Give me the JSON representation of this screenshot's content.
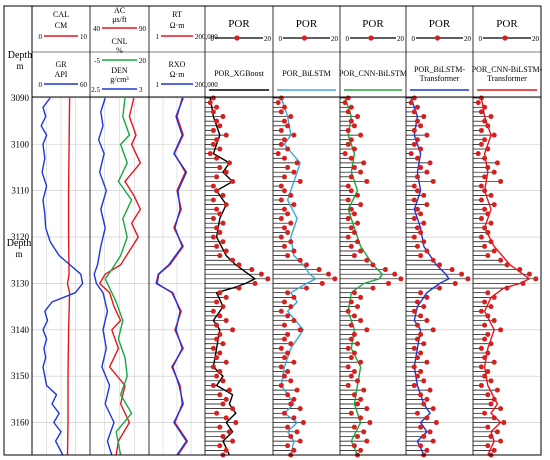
{
  "chart_data": {
    "type": "line",
    "title": "",
    "depth_axis": {
      "label": "Depth",
      "unit": "m",
      "range": [
        3090,
        3167
      ],
      "ticks": [
        3090,
        3100,
        3110,
        3120,
        3130,
        3140,
        3150,
        3160
      ]
    },
    "colors": {
      "red": "#e8141c",
      "blue": "#1f35d8",
      "green": "#16a83c",
      "cyan": "#3aa9d6",
      "black": "#000000",
      "grid": "#c8c8c8",
      "marker": "#d61f1f"
    },
    "tracks": [
      {
        "id": "t1",
        "headers": [
          {
            "name": "CAL",
            "unit": "CM",
            "min": "0",
            "max": "10",
            "color": "#e8141c"
          },
          {
            "name": "GR",
            "unit": "API",
            "min": "0",
            "max": "60",
            "color": "#1f35d8"
          }
        ],
        "series": [
          {
            "name": "CAL",
            "color": "#e8141c",
            "min": 0,
            "max": 10,
            "depth": [
              3090,
              3100,
              3110,
              3120,
              3128,
              3130,
              3132,
              3140,
              3150,
              3160,
              3167
            ],
            "values": [
              6.6,
              6.5,
              6.4,
              6.4,
              6.5,
              6.2,
              6.6,
              6.4,
              6.3,
              6.3,
              6.2
            ]
          },
          {
            "name": "GR",
            "color": "#1f35d8",
            "min": 0,
            "max": 60,
            "depth": [
              3090,
              3092,
              3094,
              3096,
              3098,
              3100,
              3103,
              3106,
              3109,
              3112,
              3115,
              3118,
              3121,
              3124,
              3126,
              3128,
              3130,
              3132,
              3134,
              3136,
              3138,
              3140,
              3142,
              3144,
              3146,
              3148,
              3150,
              3152,
              3154,
              3156,
              3158,
              3160,
              3162,
              3164,
              3167
            ],
            "values": [
              18,
              10,
              13,
              8,
              14,
              10,
              12,
              9,
              14,
              10,
              12,
              13,
              18,
              28,
              40,
              52,
              54,
              46,
              20,
              12,
              15,
              10,
              14,
              11,
              13,
              10,
              12,
              14,
              25,
              20,
              28,
              22,
              30,
              24,
              32
            ]
          }
        ]
      },
      {
        "id": "t2",
        "headers": [
          {
            "name": "AC",
            "unit": "μs/ft",
            "min": "40",
            "max": "90",
            "color": "#e8141c"
          },
          {
            "name": "CNL",
            "unit": "%",
            "min": "-5",
            "max": "20",
            "color": "#16a83c"
          },
          {
            "name": "DEN",
            "unit": "g/cm³",
            "min": "2.5",
            "max": "3",
            "color": "#1f35d8"
          }
        ],
        "series": [
          {
            "name": "AC",
            "color": "#e8141c",
            "min": 40,
            "max": 90,
            "depth": [
              3090,
              3094,
              3098,
              3100,
              3104,
              3108,
              3111,
              3114,
              3117,
              3120,
              3123,
              3126,
              3128,
              3130,
              3132,
              3135,
              3138,
              3140,
              3144,
              3148,
              3152,
              3156,
              3160,
              3164,
              3167
            ],
            "values": [
              78,
              74,
              80,
              76,
              84,
              70,
              78,
              84,
              76,
              82,
              74,
              66,
              52,
              47,
              56,
              60,
              66,
              58,
              64,
              56,
              70,
              66,
              74,
              64,
              62
            ]
          },
          {
            "name": "CNL",
            "color": "#16a83c",
            "min": -5,
            "max": 20,
            "depth": [
              3090,
              3094,
              3098,
              3100,
              3104,
              3108,
              3112,
              3116,
              3120,
              3124,
              3127,
              3129,
              3131,
              3134,
              3138,
              3142,
              3146,
              3150,
              3154,
              3158,
              3162,
              3167
            ],
            "values": [
              10,
              9,
              12,
              8,
              11,
              7,
              13,
              9,
              11,
              8,
              4,
              1,
              3,
              6,
              9,
              7,
              10,
              11,
              8,
              13,
              6,
              8
            ]
          },
          {
            "name": "DEN",
            "color": "#1f35d8",
            "min": 2.5,
            "max": 3,
            "depth": [
              3090,
              3093,
              3096,
              3099,
              3102,
              3106,
              3110,
              3114,
              3118,
              3122,
              3126,
              3128,
              3130,
              3132,
              3136,
              3140,
              3144,
              3148,
              3152,
              3156,
              3160,
              3164,
              3167
            ],
            "values": [
              2.62,
              2.58,
              2.6,
              2.56,
              2.61,
              2.57,
              2.63,
              2.58,
              2.62,
              2.58,
              2.55,
              2.52,
              2.54,
              2.6,
              2.64,
              2.6,
              2.63,
              2.59,
              2.66,
              2.62,
              2.7,
              2.64,
              2.68
            ]
          }
        ]
      },
      {
        "id": "t3",
        "headers": [
          {
            "name": "RT",
            "unit": "Ω·m",
            "min": "1",
            "max": "200,000",
            "color": "#e8141c"
          },
          {
            "name": "RXO",
            "unit": "Ω·m",
            "min": "1",
            "max": "200,000",
            "color": "#1f35d8"
          }
        ],
        "series": [
          {
            "name": "RT",
            "color": "#e8141c",
            "min": 0,
            "max": 1,
            "depth": [
              3090,
              3094,
              3098,
              3102,
              3106,
              3110,
              3114,
              3118,
              3122,
              3126,
              3128,
              3130,
              3132,
              3136,
              3140,
              3144,
              3148,
              3152,
              3156,
              3160,
              3164,
              3167
            ],
            "values": [
              0.6,
              0.5,
              0.62,
              0.45,
              0.66,
              0.5,
              0.58,
              0.44,
              0.62,
              0.36,
              0.15,
              0.12,
              0.4,
              0.58,
              0.46,
              0.62,
              0.4,
              0.56,
              0.6,
              0.46,
              0.7,
              0.52
            ]
          },
          {
            "name": "RXO",
            "color": "#1f35d8",
            "min": 0,
            "max": 1,
            "depth": [
              3090,
              3094,
              3098,
              3102,
              3106,
              3110,
              3114,
              3118,
              3122,
              3126,
              3128,
              3130,
              3132,
              3136,
              3140,
              3144,
              3148,
              3152,
              3156,
              3160,
              3164,
              3167
            ],
            "values": [
              0.62,
              0.48,
              0.6,
              0.44,
              0.68,
              0.52,
              0.56,
              0.46,
              0.6,
              0.34,
              0.14,
              0.1,
              0.42,
              0.56,
              0.48,
              0.6,
              0.42,
              0.54,
              0.62,
              0.44,
              0.68,
              0.5
            ]
          }
        ]
      },
      {
        "id": "t4",
        "headers": [
          {
            "name": "POR",
            "unit": "",
            "min": "0",
            "max": "20",
            "color": "#e8141c"
          },
          {
            "name": "POR_XGBoost",
            "unit": "",
            "min": "",
            "max": "",
            "color": "#000000"
          }
        ],
        "series": [
          {
            "name": "POR_XGBoost",
            "color": "#000000",
            "min": 0,
            "max": 20,
            "depth": [
              3090,
              3094,
              3098,
              3102,
              3104,
              3106,
              3108,
              3110,
              3113,
              3116,
              3120,
              3124,
              3126,
              3128,
              3129,
              3130,
              3131,
              3132,
              3135,
              3138,
              3140,
              3144,
              3148,
              3150,
              3152,
              3154,
              3156,
              3158,
              3160,
              3162,
              3164,
              3167
            ],
            "values": [
              1,
              2,
              4,
              2,
              7,
              5,
              8,
              3,
              6,
              4,
              3,
              6,
              9,
              13,
              15,
              12,
              8,
              3,
              5,
              2,
              4,
              3,
              2,
              5,
              3,
              8,
              7,
              9,
              6,
              8,
              5,
              7
            ]
          }
        ]
      },
      {
        "id": "t5",
        "headers": [
          {
            "name": "POR",
            "unit": "",
            "min": "0",
            "max": "20",
            "color": "#e8141c"
          },
          {
            "name": "POR_BiLSTM",
            "unit": "",
            "min": "",
            "max": "",
            "color": "#3aa9d6"
          }
        ],
        "series": [
          {
            "name": "POR_BiLSTM",
            "color": "#3aa9d6",
            "min": 0,
            "max": 20,
            "depth": [
              3090,
              3094,
              3098,
              3100,
              3104,
              3108,
              3112,
              3116,
              3120,
              3124,
              3126,
              3128,
              3129,
              3130,
              3132,
              3134,
              3136,
              3140,
              3144,
              3148,
              3152,
              3154,
              3156,
              3158,
              3160,
              3162,
              3164,
              3167
            ],
            "values": [
              2,
              4,
              5,
              3,
              8,
              6,
              4,
              7,
              5,
              6,
              9,
              11,
              13,
              10,
              5,
              7,
              4,
              9,
              5,
              3,
              2,
              4,
              6,
              3,
              7,
              4,
              6,
              5
            ]
          }
        ]
      },
      {
        "id": "t6",
        "headers": [
          {
            "name": "POR",
            "unit": "",
            "min": "0",
            "max": "20",
            "color": "#e8141c"
          },
          {
            "name": "POR_CNN-BiLSTM",
            "unit": "",
            "min": "",
            "max": "",
            "color": "#16a83c"
          }
        ],
        "series": [
          {
            "name": "POR_CNN-BiLSTM",
            "color": "#16a83c",
            "min": 0,
            "max": 20,
            "depth": [
              3090,
              3094,
              3098,
              3102,
              3106,
              3110,
              3114,
              3118,
              3122,
              3126,
              3128,
              3129,
              3130,
              3132,
              3136,
              3140,
              3144,
              3148,
              3152,
              3156,
              3160,
              3164,
              3167
            ],
            "values": [
              1,
              3,
              2,
              4,
              3,
              5,
              2,
              4,
              6,
              10,
              13,
              12,
              7,
              3,
              2,
              4,
              3,
              6,
              5,
              4,
              6,
              3,
              5
            ]
          }
        ]
      },
      {
        "id": "t7",
        "headers": [
          {
            "name": "POR",
            "unit": "",
            "min": "0",
            "max": "20",
            "color": "#e8141c"
          },
          {
            "name": "POR_BiLSTM-Transformer",
            "unit": "",
            "min": "",
            "max": "",
            "color": "#1f35d8"
          }
        ],
        "series": [
          {
            "name": "POR_BiLSTM-Transformer",
            "color": "#1f35d8",
            "min": 0,
            "max": 20,
            "depth": [
              3090,
              3094,
              3098,
              3102,
              3106,
              3110,
              3114,
              3118,
              3122,
              3126,
              3128,
              3129,
              3130,
              3132,
              3135,
              3138,
              3140,
              3144,
              3148,
              3152,
              3156,
              3158,
              3160,
              3162,
              3164,
              3167
            ],
            "values": [
              1,
              3,
              2,
              4,
              3,
              4,
              2,
              4,
              5,
              9,
              12,
              13,
              10,
              6,
              3,
              2,
              4,
              3,
              2,
              3,
              5,
              7,
              4,
              6,
              3,
              5
            ]
          }
        ]
      },
      {
        "id": "t8",
        "headers": [
          {
            "name": "POR",
            "unit": "",
            "min": "0",
            "max": "20",
            "color": "#e8141c"
          },
          {
            "name": "POR_CNN-BiLSTM-Transformer",
            "unit": "",
            "min": "",
            "max": "",
            "color": "#e8141c"
          }
        ],
        "series": [
          {
            "name": "POR_CNN-BiLSTM-Transformer",
            "color": "#e8141c",
            "min": 0,
            "max": 20,
            "depth": [
              3090,
              3094,
              3098,
              3102,
              3106,
              3110,
              3114,
              3118,
              3122,
              3126,
              3128,
              3129,
              3130,
              3131,
              3133,
              3136,
              3140,
              3144,
              3148,
              3152,
              3156,
              3158,
              3160,
              3162,
              3164,
              3167
            ],
            "values": [
              2,
              3,
              5,
              3,
              4,
              3,
              5,
              3,
              6,
              11,
              15,
              17,
              14,
              9,
              5,
              3,
              6,
              4,
              3,
              4,
              7,
              5,
              8,
              5,
              6,
              4
            ]
          }
        ]
      }
    ],
    "measured_por": {
      "name": "POR",
      "color": "#d61f1f",
      "min": 0,
      "max": 20,
      "depth": [
        3090,
        3091,
        3092,
        3093,
        3094,
        3095,
        3096,
        3097,
        3098,
        3099,
        3100,
        3101,
        3102,
        3103,
        3104,
        3105,
        3106,
        3107,
        3108,
        3109,
        3110,
        3111,
        3112,
        3113,
        3114,
        3115,
        3116,
        3117,
        3118,
        3119,
        3120,
        3121,
        3122,
        3123,
        3124,
        3125,
        3126,
        3127,
        3128,
        3129,
        3130,
        3131,
        3132,
        3133,
        3134,
        3135,
        3136,
        3137,
        3138,
        3139,
        3140,
        3141,
        3142,
        3143,
        3144,
        3145,
        3146,
        3147,
        3148,
        3149,
        3150,
        3151,
        3152,
        3153,
        3154,
        3155,
        3156,
        3157,
        3158,
        3159,
        3160,
        3161,
        3162,
        3163,
        3164,
        3165,
        3166,
        3167
      ],
      "values": [
        2,
        1,
        3,
        2,
        5,
        3,
        4,
        2,
        6,
        3,
        2,
        4,
        1,
        3,
        7,
        4,
        6,
        3,
        8,
        2,
        3,
        5,
        2,
        6,
        3,
        4,
        2,
        5,
        3,
        4,
        2,
        5,
        3,
        6,
        4,
        8,
        10,
        14,
        17,
        19,
        15,
        10,
        4,
        6,
        3,
        5,
        2,
        4,
        6,
        3,
        8,
        4,
        3,
        5,
        2,
        4,
        3,
        6,
        2,
        4,
        3,
        5,
        2,
        7,
        4,
        6,
        5,
        8,
        3,
        6,
        9,
        4,
        7,
        5,
        8,
        4,
        6,
        5
      ]
    }
  }
}
